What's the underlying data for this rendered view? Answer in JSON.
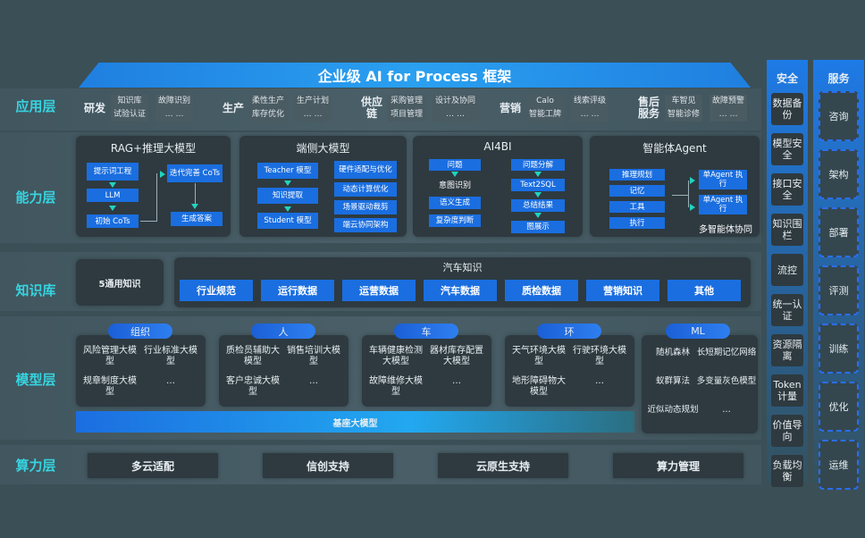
{
  "title": "企业级 AI for Process 框架",
  "layers": {
    "app": "应用层",
    "capability": "能力层",
    "knowledge": "知识库",
    "model": "模型层",
    "compute": "算力层"
  },
  "app_groups": [
    {
      "name": "研发",
      "cols": [
        [
          "知识库",
          "试验认证"
        ],
        [
          "故障识别",
          "… …"
        ]
      ]
    },
    {
      "name": "生产",
      "cols": [
        [
          "柔性生产",
          "库存优化"
        ],
        [
          "生产计划",
          "… …"
        ]
      ]
    },
    {
      "name": "供应链",
      "cols": [
        [
          "采购管理",
          "项目管理"
        ],
        [
          "设计及协同",
          "… …"
        ]
      ]
    },
    {
      "name": "营销",
      "cols": [
        [
          "Calo",
          "智能工牌"
        ],
        [
          "线索评级",
          "… …"
        ]
      ]
    },
    {
      "name": "售后服务",
      "cols": [
        [
          "车智见",
          "智能诊修"
        ],
        [
          "故障预警",
          "… …"
        ]
      ]
    }
  ],
  "capabilities": {
    "rag": {
      "title": "RAG+推理大模型",
      "items": [
        "提示词工程",
        "LLM",
        "初始 CoTs",
        "迭代完善 CoTs",
        "生成答案"
      ]
    },
    "edge": {
      "title": "端侧大模型",
      "left": [
        "Teacher 模型",
        "知识提取",
        "Student 模型"
      ],
      "right": [
        "硬件适配与优化",
        "动态计算优化",
        "场景驱动裁剪",
        "端云协同架构"
      ]
    },
    "ai4bi": {
      "title": "AI4BI",
      "left": [
        "问题",
        "意图识别",
        "语义生成",
        "复杂度判断"
      ],
      "right": [
        "问题分解",
        "Text2SQL",
        "总结结果",
        "图展示"
      ]
    },
    "agent": {
      "title": "智能体Agent",
      "items": [
        "推理规划",
        "记忆",
        "工具",
        "执行"
      ],
      "exec": [
        "单Agent 执行",
        "单Agent 执行"
      ],
      "footer": "多智能体协同"
    }
  },
  "knowledge": {
    "general": "5通用知识",
    "auto_title": "汽车知识",
    "auto_items": [
      "行业规范",
      "运行数据",
      "运营数据",
      "汽车数据",
      "质检数据",
      "营销知识",
      "其他"
    ]
  },
  "models": [
    {
      "tag": "组织",
      "items": [
        "风险管理大模型",
        "行业标准大模型",
        "规章制度大模型",
        "…"
      ]
    },
    {
      "tag": "人",
      "items": [
        "质检员辅助大模型",
        "销售培训大模型",
        "客户忠诚大模型",
        "…"
      ]
    },
    {
      "tag": "车",
      "items": [
        "车辆健康检测大模型",
        "器材库存配置大模型",
        "故障维修大模型",
        "…"
      ]
    },
    {
      "tag": "环",
      "items": [
        "天气环境大模型",
        "行驶环境大模型",
        "地形障碍物大模型",
        "…"
      ]
    },
    {
      "tag": "ML",
      "items": [
        "随机森林",
        "长短期记忆网络",
        "蚁群算法",
        "多变量灰色模型",
        "近似动态规划",
        "…"
      ]
    }
  ],
  "base_model": "基座大模型",
  "compute": [
    "多云适配",
    "信创支持",
    "云原生支持",
    "算力管理"
  ],
  "security": {
    "title": "安全",
    "items": [
      "数据备份",
      "模型安全",
      "接口安全",
      "知识围栏",
      "流控",
      "统一认证",
      "资源隔离",
      "Token计量",
      "价值导向",
      "负载均衡"
    ]
  },
  "services": {
    "title": "服务",
    "items": [
      "咨询",
      "架构",
      "部署",
      "评测",
      "训练",
      "优化",
      "运维"
    ]
  },
  "colors": {
    "background": "#3b4f57",
    "accent_blue": "#1a6ee0",
    "layer_label": "#37d3e0",
    "card": "#2e3a40"
  }
}
